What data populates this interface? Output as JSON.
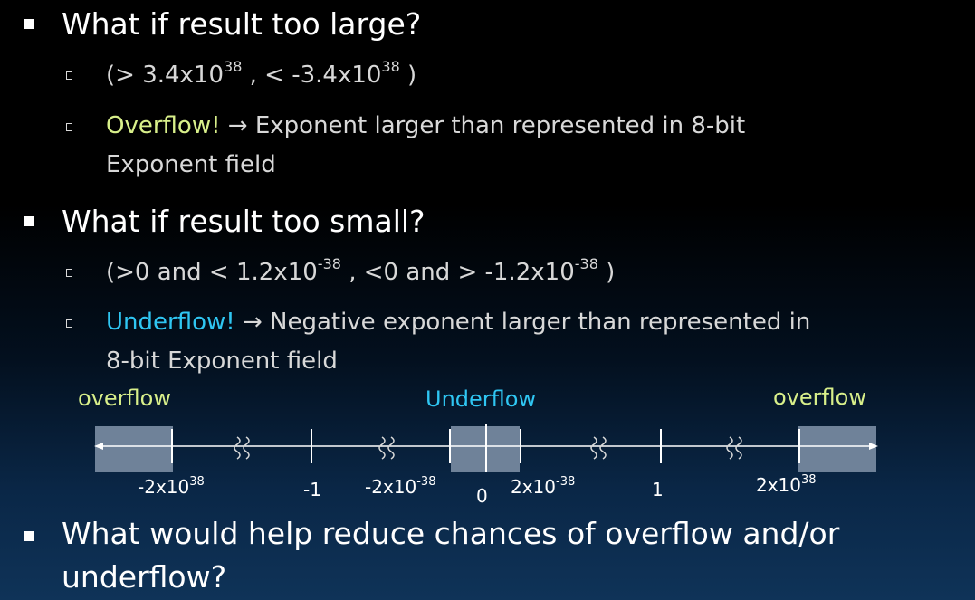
{
  "bullets": [
    {
      "text": "What if result too large?",
      "sub": [
        {
          "parts": [
            "(> 3.4x10",
            "38",
            " , < -3.4x10",
            "38",
            " )"
          ]
        },
        {
          "highlight": "Overflow!",
          "arrow": "→",
          "text": "Exponent larger than represented in 8-bit",
          "text2": "Exponent field",
          "color": "#d8ef8a"
        }
      ]
    },
    {
      "text": "What if result too small?",
      "sub": [
        {
          "parts": [
            "(>0 and < 1.2x10",
            "-38",
            " , <0 and > -1.2x10",
            "-38",
            " )"
          ]
        },
        {
          "highlight": "Underflow!",
          "arrow": "→",
          "text": "Negative exponent larger than represented in",
          "text2": "8-bit Exponent field",
          "color": "#2fc6f2"
        }
      ]
    },
    {
      "text": "What would help reduce chances of overflow and/or",
      "text2": "underflow?"
    }
  ],
  "number_line": {
    "labels": {
      "overflow_left": "overflow",
      "underflow": "Underflow",
      "overflow_right": "overflow"
    },
    "ticks": [
      {
        "base": "-2x10",
        "exp": "38"
      },
      {
        "base": "-1",
        "exp": ""
      },
      {
        "base": "-2x10",
        "exp": "-38"
      },
      {
        "base": "0",
        "exp": ""
      },
      {
        "base": "2x10",
        "exp": "-38"
      },
      {
        "base": "1",
        "exp": ""
      },
      {
        "base": "2x10",
        "exp": "38"
      }
    ],
    "colors": {
      "shade": "#6f8299",
      "line": "#ffffff",
      "yellow": "#d8ef8a",
      "cyan": "#2fc6f2"
    }
  }
}
